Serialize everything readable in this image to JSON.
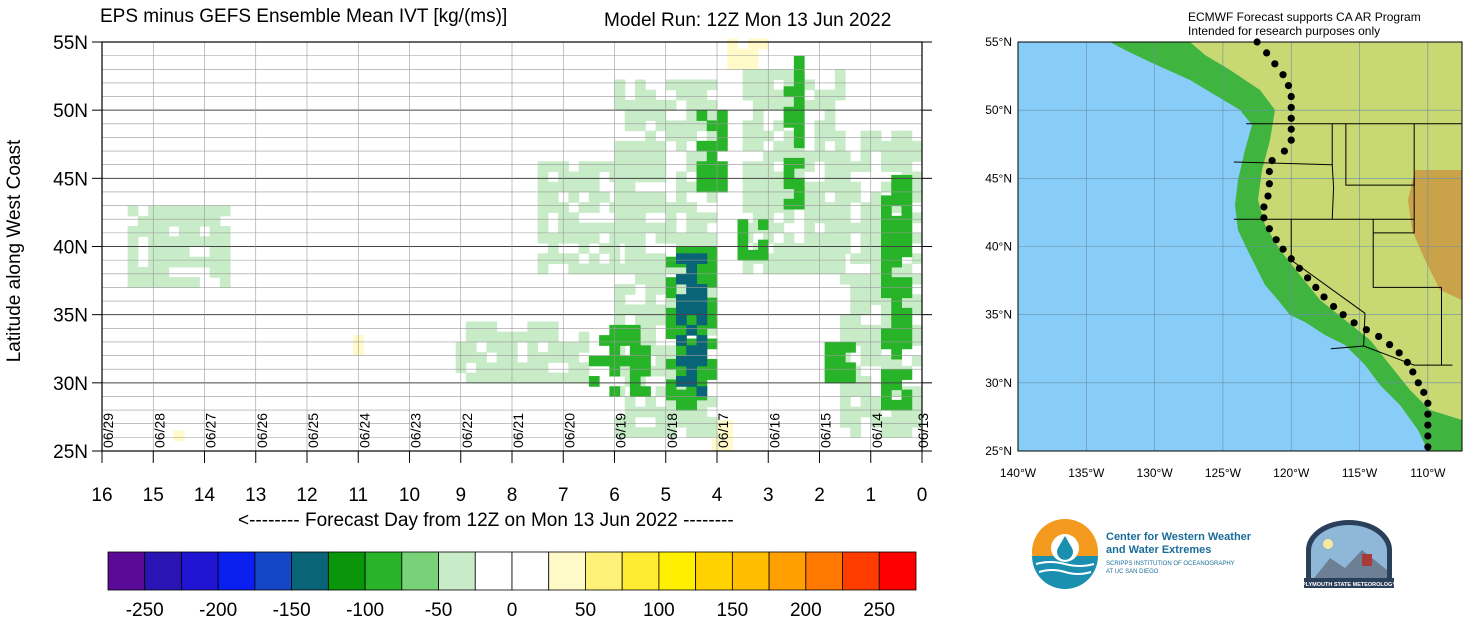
{
  "header": {
    "title": "EPS minus GEFS Ensemble Mean IVT [kg/(ms)]",
    "model_run": "Model Run: 12Z Mon 13 Jun 2022"
  },
  "chart_data": {
    "type": "heatmap",
    "title": "EPS minus GEFS Ensemble Mean IVT [kg/(ms)]",
    "xlabel": "<-------- Forecast Day from 12Z on Mon 13 Jun 2022 --------",
    "ylabel": "Latitude along West Coast",
    "x_reversed": true,
    "xlim": [
      0,
      16
    ],
    "ylim": [
      25,
      55
    ],
    "x_ticks": [
      16,
      15,
      14,
      13,
      12,
      11,
      10,
      9,
      8,
      7,
      6,
      5,
      4,
      3,
      2,
      1,
      0
    ],
    "y_ticks": [
      {
        "value": 55,
        "label": "55N"
      },
      {
        "value": 50,
        "label": "50N"
      },
      {
        "value": 45,
        "label": "45N"
      },
      {
        "value": 40,
        "label": "40N"
      },
      {
        "value": 35,
        "label": "35N"
      },
      {
        "value": 30,
        "label": "30N"
      },
      {
        "value": 25,
        "label": "25N"
      }
    ],
    "date_labels": [
      {
        "day": 15.9,
        "label": "06/29"
      },
      {
        "day": 14.9,
        "label": "06/28"
      },
      {
        "day": 13.9,
        "label": "06/27"
      },
      {
        "day": 12.9,
        "label": "06/26"
      },
      {
        "day": 11.9,
        "label": "06/25"
      },
      {
        "day": 10.9,
        "label": "06/24"
      },
      {
        "day": 9.9,
        "label": "06/23"
      },
      {
        "day": 8.9,
        "label": "06/22"
      },
      {
        "day": 7.9,
        "label": "06/21"
      },
      {
        "day": 6.9,
        "label": "06/20"
      },
      {
        "day": 5.9,
        "label": "06/19"
      },
      {
        "day": 4.9,
        "label": "06/18"
      },
      {
        "day": 3.9,
        "label": "06/17"
      },
      {
        "day": 2.9,
        "label": "06/16"
      },
      {
        "day": 1.9,
        "label": "06/15"
      },
      {
        "day": 0.9,
        "label": "06/14"
      },
      {
        "day": 0.0,
        "label": "06/13"
      }
    ],
    "colorbar": {
      "labels": [
        "-250",
        "-200",
        "-150",
        "-100",
        "-50",
        "0",
        "50",
        "100",
        "150",
        "200",
        "250"
      ],
      "colors": [
        "#5a0a96",
        "#2a14b4",
        "#1e14d2",
        "#0a1ef0",
        "#1446c8",
        "#0a6478",
        "#0a960a",
        "#28b428",
        "#78d278",
        "#c8ebc8",
        "#ffffff",
        "#ffffff",
        "#fffac8",
        "#fff078",
        "#ffeb32",
        "#fff000",
        "#ffd200",
        "#ffbe00",
        "#ffa000",
        "#ff7800",
        "#ff3c00",
        "#ff0000"
      ]
    },
    "regions": [
      {
        "day": [
          4.2,
          4.8
        ],
        "lat": [
          29,
          39
        ],
        "value": -150
      },
      {
        "day": [
          4.0,
          5.0
        ],
        "lat": [
          28,
          40
        ],
        "value": -100
      },
      {
        "day": [
          5.3,
          6.5
        ],
        "lat": [
          29,
          34
        ],
        "value": -100
      },
      {
        "day": [
          2.3,
          2.7
        ],
        "lat": [
          42,
          54
        ],
        "value": -100
      },
      {
        "day": [
          0.2,
          0.8
        ],
        "lat": [
          28,
          45
        ],
        "value": -100
      },
      {
        "day": [
          1.3,
          2.0
        ],
        "lat": [
          30,
          33
        ],
        "value": -100
      },
      {
        "day": [
          3.8,
          4.4
        ],
        "lat": [
          44,
          50
        ],
        "value": -100
      },
      {
        "day": [
          3.0,
          3.6
        ],
        "lat": [
          39,
          42
        ],
        "value": -100
      },
      {
        "day": [
          5.5,
          7.5
        ],
        "lat": [
          38,
          46
        ],
        "value": -50
      },
      {
        "day": [
          4.0,
          6.0
        ],
        "lat": [
          26,
          52
        ],
        "value": -50
      },
      {
        "day": [
          1.5,
          3.5
        ],
        "lat": [
          38,
          53
        ],
        "value": -50
      },
      {
        "day": [
          6.5,
          9.0
        ],
        "lat": [
          30,
          34
        ],
        "value": -50
      },
      {
        "day": [
          13.5,
          15.5
        ],
        "lat": [
          37,
          43
        ],
        "value": -50
      },
      {
        "day": [
          6.0,
          15.5
        ],
        "lat": [
          39,
          50
        ],
        "value": -25
      },
      {
        "day": [
          7.0,
          10.0
        ],
        "lat": [
          27,
          37
        ],
        "value": -25
      },
      {
        "day": [
          0.0,
          1.5
        ],
        "lat": [
          26,
          48
        ],
        "value": -50
      },
      {
        "day": [
          3.7,
          4.0
        ],
        "lat": [
          25,
          27
        ],
        "value": 25
      },
      {
        "day": [
          3.0,
          3.8
        ],
        "lat": [
          53,
          55
        ],
        "value": 25
      },
      {
        "day": [
          14.4,
          14.6
        ],
        "lat": [
          25,
          26.5
        ],
        "value": 25
      },
      {
        "day": [
          10.9,
          11.1
        ],
        "lat": [
          32,
          33
        ],
        "value": 25
      }
    ]
  },
  "map": {
    "credit_line1": "ECMWF Forecast supports CA AR Program",
    "credit_line2": "Intended for research purposes only",
    "lat_labels": [
      "55°N",
      "50°N",
      "45°N",
      "40°N",
      "35°N",
      "30°N",
      "25°N"
    ],
    "lon_labels": [
      "140°W",
      "135°W",
      "130°W",
      "125°W",
      "120°W",
      "115°W",
      "110°W"
    ],
    "colors": {
      "ocean": "#87cdf8",
      "lowland": "#3fb43f",
      "upland": "#c8d872",
      "highland": "#c9a24a"
    }
  },
  "logos": {
    "cw3e_line1": "Center for Western Weather",
    "cw3e_line2": "and Water Extremes",
    "cw3e_line3": "SCRIPPS INSTITUTION OF OCEANOGRAPHY",
    "cw3e_line4": "AT UC SAN DIEGO",
    "plymouth_text": "PLYMOUTH STATE METEOROLOGY"
  }
}
